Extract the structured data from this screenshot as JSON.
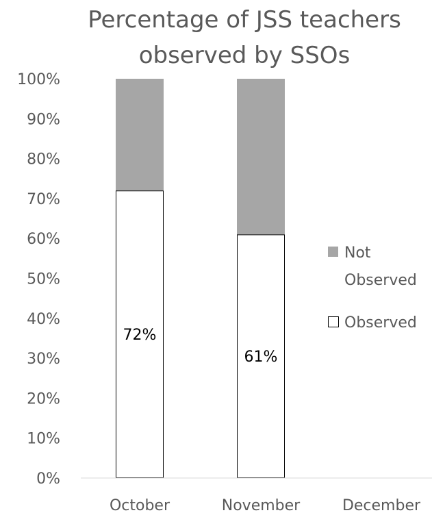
{
  "chart_data": {
    "type": "bar",
    "stacked": true,
    "title": "Percentage of JSS teachers observed by SSOs",
    "title_lines": [
      "Percentage of JSS teachers",
      "observed by SSOs"
    ],
    "categories": [
      "October",
      "November",
      "December"
    ],
    "series": [
      {
        "name": "Observed",
        "values": [
          72,
          61,
          null
        ],
        "labels": [
          "72%",
          "61%",
          ""
        ],
        "color": "#ffffff",
        "stroke": "#000000"
      },
      {
        "name": "Not Observed",
        "values": [
          28,
          39,
          null
        ],
        "color": "#a6a6a6"
      }
    ],
    "legend": {
      "position": "right",
      "entries": [
        {
          "lines": [
            "Not",
            "Observed"
          ],
          "series": "Not Observed"
        },
        {
          "lines": [
            "Observed"
          ],
          "series": "Observed"
        }
      ]
    },
    "ylim": [
      0,
      100
    ],
    "yticks": [
      "0%",
      "10%",
      "20%",
      "30%",
      "40%",
      "50%",
      "60%",
      "70%",
      "80%",
      "90%",
      "100%"
    ],
    "grid": false,
    "colors": {
      "text": "#595959",
      "axis": "#d9d9d9",
      "observed_fill": "#ffffff",
      "not_observed_fill": "#a6a6a6",
      "bar_outline": "#000000"
    }
  }
}
